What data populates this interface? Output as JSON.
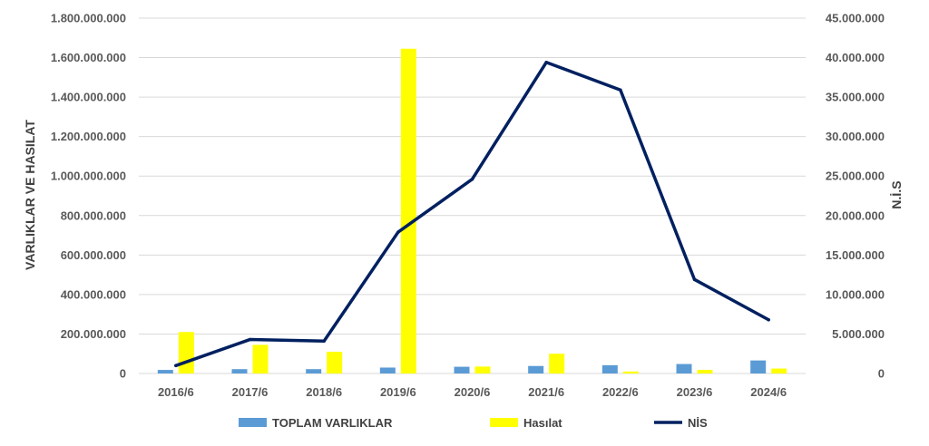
{
  "chart_data": {
    "type": "bar",
    "categories": [
      "2016/6",
      "2017/6",
      "2018/6",
      "2019/6",
      "2020/6",
      "2021/6",
      "2022/6",
      "2023/6",
      "2024/6"
    ],
    "series": [
      {
        "name": "TOPLAM VARLIKLAR",
        "type": "bar",
        "axis": "left",
        "color": "#5B9BD5",
        "values": [
          18000000,
          22000000,
          22000000,
          30000000,
          34000000,
          38000000,
          42000000,
          48000000,
          66000000
        ]
      },
      {
        "name": "Hasılat",
        "type": "bar",
        "axis": "left",
        "color": "#FFFF00",
        "values": [
          210000000,
          145000000,
          110000000,
          1645000000,
          35000000,
          100000000,
          10000000,
          18000000,
          25000000
        ]
      },
      {
        "name": "NİS",
        "type": "line",
        "axis": "right",
        "color": "#002060",
        "values": [
          1000000,
          4300000,
          4100000,
          17900000,
          24600000,
          39400000,
          35900000,
          11900000,
          6800000
        ]
      }
    ],
    "ylabel": "VARLIKLAR VE HASILAT",
    "y2label": "N.İ.S",
    "ylim": [
      0,
      1800000000
    ],
    "y2lim": [
      0,
      45000000
    ],
    "yticks": [
      "0",
      "200.000.000",
      "400.000.000",
      "600.000.000",
      "800.000.000",
      "1.000.000.000",
      "1.200.000.000",
      "1.400.000.000",
      "1.600.000.000",
      "1.800.000.000"
    ],
    "y2ticks": [
      "0",
      "5.000.000",
      "10.000.000",
      "15.000.000",
      "20.000.000",
      "25.000.000",
      "30.000.000",
      "35.000.000",
      "40.000.000",
      "45.000.000"
    ],
    "grid": true,
    "legend": "bottom"
  }
}
